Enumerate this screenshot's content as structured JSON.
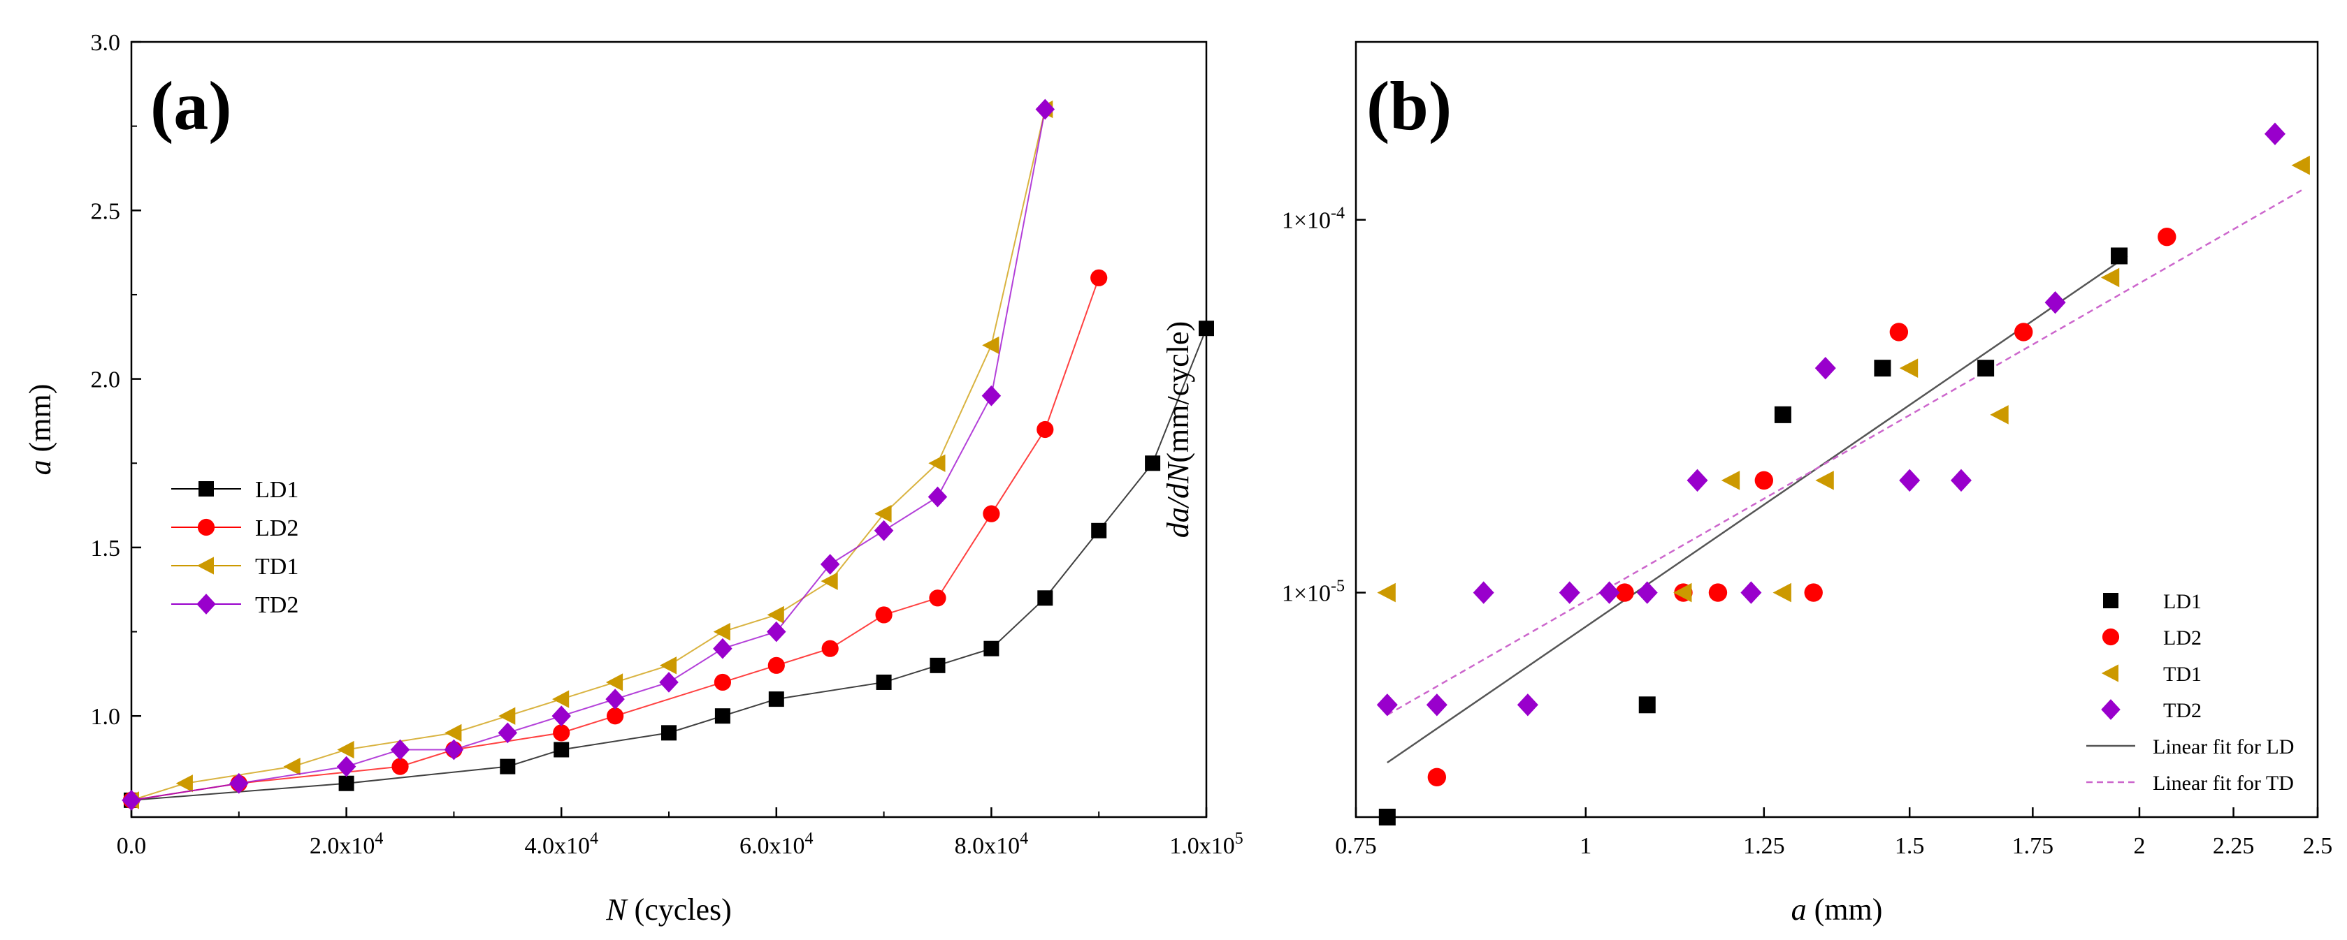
{
  "colors": {
    "LD1": "#000000",
    "LD2": "#ff0000",
    "TD1": "#cc9900",
    "TD2": "#9900cc",
    "fitLD": "#555555",
    "fitTD": "#cc66cc"
  },
  "chart_data": [
    {
      "type": "line",
      "panel_label": "(a)",
      "title": "",
      "xlabel": {
        "var": "N",
        "unit": " (cycles)"
      },
      "ylabel": {
        "var": "a",
        "unit": " (mm)"
      },
      "xlim": [
        0,
        100000
      ],
      "ylim": [
        0.7,
        3.0
      ],
      "xticks": [
        {
          "v": 0,
          "base": "0.0",
          "exp": ""
        },
        {
          "v": 20000,
          "base": "2.0x10",
          "exp": "4"
        },
        {
          "v": 40000,
          "base": "4.0x10",
          "exp": "4"
        },
        {
          "v": 60000,
          "base": "6.0x10",
          "exp": "4"
        },
        {
          "v": 80000,
          "base": "8.0x10",
          "exp": "4"
        },
        {
          "v": 100000,
          "base": "1.0x10",
          "exp": "5"
        }
      ],
      "yticks": [
        {
          "v": 1.0,
          "label": "1.0"
        },
        {
          "v": 1.5,
          "label": "1.5"
        },
        {
          "v": 2.0,
          "label": "2.0"
        },
        {
          "v": 2.5,
          "label": "2.5"
        },
        {
          "v": 3.0,
          "label": "3.0"
        }
      ],
      "legend_position": "center-left",
      "series": [
        {
          "name": "LD1",
          "marker": "square",
          "x": [
            0,
            20000,
            35000,
            40000,
            50000,
            55000,
            60000,
            70000,
            75000,
            80000,
            85000,
            90000,
            95000,
            100000
          ],
          "y": [
            0.75,
            0.8,
            0.85,
            0.9,
            0.95,
            1.0,
            1.05,
            1.1,
            1.15,
            1.2,
            1.35,
            1.55,
            1.75,
            2.15
          ]
        },
        {
          "name": "LD2",
          "marker": "circle",
          "x": [
            0,
            10000,
            25000,
            30000,
            40000,
            45000,
            55000,
            60000,
            65000,
            70000,
            75000,
            80000,
            85000,
            90000
          ],
          "y": [
            0.75,
            0.8,
            0.85,
            0.9,
            0.95,
            1.0,
            1.1,
            1.15,
            1.2,
            1.3,
            1.35,
            1.6,
            1.85,
            2.3
          ]
        },
        {
          "name": "TD1",
          "marker": "triangle-left",
          "x": [
            0,
            5000,
            15000,
            20000,
            30000,
            35000,
            40000,
            45000,
            50000,
            55000,
            60000,
            65000,
            70000,
            75000,
            80000,
            85000
          ],
          "y": [
            0.75,
            0.8,
            0.85,
            0.9,
            0.95,
            1.0,
            1.05,
            1.1,
            1.15,
            1.25,
            1.3,
            1.4,
            1.6,
            1.75,
            2.1,
            2.8
          ]
        },
        {
          "name": "TD2",
          "marker": "diamond",
          "x": [
            0,
            10000,
            20000,
            25000,
            30000,
            35000,
            40000,
            45000,
            50000,
            55000,
            60000,
            65000,
            70000,
            75000,
            80000,
            85000
          ],
          "y": [
            0.75,
            0.8,
            0.85,
            0.9,
            0.9,
            0.95,
            1.0,
            1.05,
            1.1,
            1.2,
            1.25,
            1.45,
            1.55,
            1.65,
            1.95,
            2.8
          ]
        }
      ]
    },
    {
      "type": "scatter",
      "panel_label": "(b)",
      "title": "",
      "xlabel": {
        "var": "a",
        "unit": " (mm)"
      },
      "ylabel": {
        "var": "da/dN",
        "unit": "(mm/cycle)"
      },
      "xscale": "log",
      "yscale": "log",
      "xlim": [
        0.75,
        2.5
      ],
      "ylim": [
        2.5e-06,
        0.0003
      ],
      "xticks": [
        {
          "v": 0.75,
          "label": "0.75"
        },
        {
          "v": 1.0,
          "label": "1"
        },
        {
          "v": 1.25,
          "label": "1.25"
        },
        {
          "v": 1.5,
          "label": "1.5"
        },
        {
          "v": 1.75,
          "label": "1.75"
        },
        {
          "v": 2.0,
          "label": "2"
        },
        {
          "v": 2.25,
          "label": "2.25"
        },
        {
          "v": 2.5,
          "label": "2.5"
        }
      ],
      "yticks": [
        {
          "v": 1e-05,
          "base": "1×10",
          "exp": "-5"
        },
        {
          "v": 0.0001,
          "base": "1×10",
          "exp": "-4"
        }
      ],
      "legend_position": "bottom-right",
      "series": [
        {
          "name": "LD1",
          "marker": "square",
          "x": [
            0.78,
            1.08,
            1.28,
            1.45,
            1.65,
            1.95
          ],
          "y": [
            2.5e-06,
            5e-06,
            3e-05,
            4e-05,
            4e-05,
            8e-05
          ]
        },
        {
          "name": "LD2",
          "marker": "circle",
          "x": [
            0.83,
            1.05,
            1.13,
            1.18,
            1.25,
            1.33,
            1.48,
            1.73,
            2.07
          ],
          "y": [
            3.2e-06,
            1e-05,
            1e-05,
            1e-05,
            2e-05,
            1e-05,
            5e-05,
            5e-05,
            9e-05
          ]
        },
        {
          "name": "TD1",
          "marker": "triangle-left",
          "x": [
            0.78,
            1.13,
            1.2,
            1.28,
            1.35,
            1.5,
            1.68,
            1.93,
            2.45
          ],
          "y": [
            1e-05,
            1e-05,
            2e-05,
            1e-05,
            2e-05,
            4e-05,
            3e-05,
            7e-05,
            0.00014
          ]
        },
        {
          "name": "TD2",
          "marker": "diamond",
          "x": [
            0.78,
            0.83,
            0.88,
            0.93,
            0.98,
            1.03,
            1.08,
            1.15,
            1.23,
            1.35,
            1.5,
            1.6,
            1.8,
            2.37
          ],
          "y": [
            5e-06,
            5e-06,
            1e-05,
            5e-06,
            1e-05,
            1e-05,
            1e-05,
            2e-05,
            1e-05,
            4e-05,
            2e-05,
            2e-05,
            6e-05,
            0.00017
          ]
        }
      ],
      "fits": [
        {
          "name": "Linear fit for LD",
          "style": "solid",
          "x": [
            0.78,
            1.97
          ],
          "y": [
            3.5e-06,
            8e-05
          ]
        },
        {
          "name": "Linear fit for TD",
          "style": "dashed",
          "x": [
            0.78,
            2.45
          ],
          "y": [
            4.7e-06,
            0.00012
          ]
        }
      ]
    }
  ]
}
